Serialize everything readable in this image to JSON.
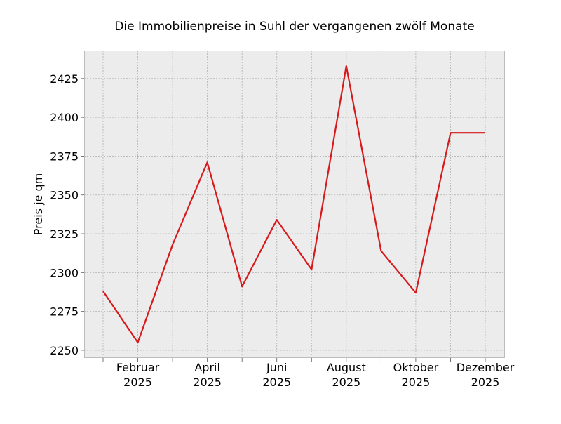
{
  "chart_data": {
    "type": "line",
    "title": "Die Immobilienpreise in Suhl der vergangenen zwölf Monate",
    "xlabel": "",
    "ylabel": "Preis je qm",
    "x": [
      "2025-01",
      "2025-02",
      "2025-03",
      "2025-04",
      "2025-05",
      "2025-06",
      "2025-07",
      "2025-08",
      "2025-09",
      "2025-10",
      "2025-11",
      "2025-12"
    ],
    "xtick_labels": [
      {
        "month": "2025-02",
        "line1": "Februar",
        "line2": "2025"
      },
      {
        "month": "2025-04",
        "line1": "April",
        "line2": "2025"
      },
      {
        "month": "2025-06",
        "line1": "Juni",
        "line2": "2025"
      },
      {
        "month": "2025-08",
        "line1": "August",
        "line2": "2025"
      },
      {
        "month": "2025-10",
        "line1": "Oktober",
        "line2": "2025"
      },
      {
        "month": "2025-12",
        "line1": "Dezember",
        "line2": "2025"
      }
    ],
    "series": [
      {
        "values": [
          2288,
          2255,
          2318,
          2371,
          2291,
          2334,
          2302,
          2433,
          2314,
          2287,
          2390,
          2390
        ]
      }
    ],
    "yticks": [
      2250,
      2275,
      2300,
      2325,
      2350,
      2375,
      2400,
      2425
    ],
    "ylim": [
      2245,
      2443
    ],
    "grid": true,
    "legend": "none",
    "colors": {
      "line": "#d7191c",
      "plot_background": "#ececec",
      "grid": "#b0b0b0",
      "spine": "#bcbcbc"
    }
  }
}
